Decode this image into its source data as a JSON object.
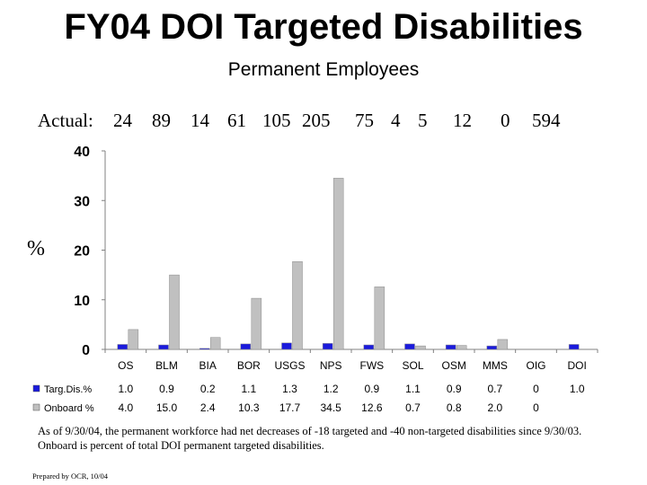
{
  "page": {
    "title": "FY04 DOI Targeted Disabilities",
    "subtitle": "Permanent Employees",
    "actual_label": "Actual:",
    "actual_values": [
      "24",
      "89",
      "14",
      "61",
      "105",
      "205",
      "75",
      "4",
      "5",
      "12",
      "0",
      "594"
    ],
    "footnote": "As of 9/30/04, the permanent workforce had net decreases of -18 targeted and -40 non-targeted disabilities since 9/30/03.  Onboard is percent of total DOI permanent targeted disabilities.",
    "prepared_by": "Prepared by OCR, 10/04"
  },
  "colors": {
    "targ_dis": "#1a1adc",
    "onboard": "#c0c0c0",
    "axis": "#808080"
  },
  "chart_data": {
    "type": "bar",
    "ylabel": "%",
    "ylim": [
      0,
      40
    ],
    "yticks": [
      "0",
      "10",
      "20",
      "30",
      "40"
    ],
    "grid": false,
    "legend_placement": "table-left",
    "categories": [
      "OS",
      "BLM",
      "BIA",
      "BOR",
      "USGS",
      "NPS",
      "FWS",
      "SOL",
      "OSM",
      "MMS",
      "OIG",
      "DOI"
    ],
    "series": [
      {
        "name": "Targ.Dis.%",
        "values": [
          1.0,
          0.9,
          0.2,
          1.1,
          1.3,
          1.2,
          0.9,
          1.1,
          0.9,
          0.7,
          0,
          1.0
        ],
        "labels": [
          "1.0",
          "0.9",
          "0.2",
          "1.1",
          "1.3",
          "1.2",
          "0.9",
          "1.1",
          "0.9",
          "0.7",
          "0",
          "1.0"
        ]
      },
      {
        "name": "Onboard %",
        "values": [
          4.0,
          15.0,
          2.4,
          10.3,
          17.7,
          34.5,
          12.6,
          0.7,
          0.8,
          2.0,
          0,
          0
        ],
        "labels": [
          "4.0",
          "15.0",
          "2.4",
          "10.3",
          "17.7",
          "34.5",
          "12.6",
          "0.7",
          "0.8",
          "2.0",
          "0",
          ""
        ]
      }
    ]
  }
}
